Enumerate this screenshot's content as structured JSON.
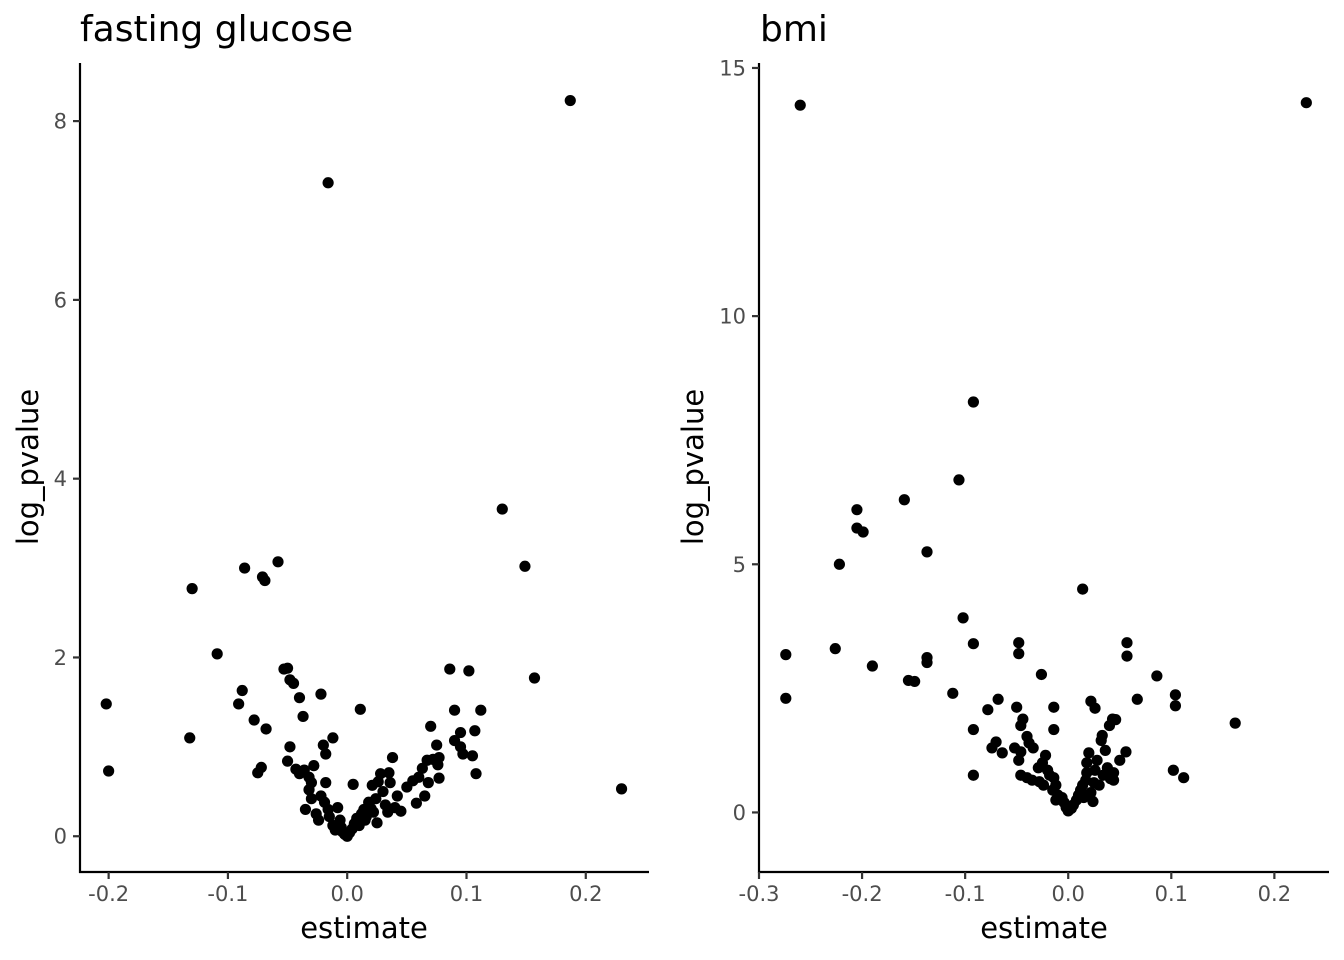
{
  "chart_data": [
    {
      "type": "scatter",
      "title": "fasting glucose",
      "xlabel": "estimate",
      "ylabel": "log_pvalue",
      "xlim": [
        -0.224,
        0.253
      ],
      "ylim": [
        -0.4,
        8.65
      ],
      "xticks": [
        -0.2,
        -0.1,
        0.0,
        0.1,
        0.2
      ],
      "xtick_labels": [
        "-0.2",
        "-0.1",
        "0.0",
        "0.1",
        "0.2"
      ],
      "yticks": [
        0,
        2,
        4,
        6,
        8
      ],
      "ytick_labels": [
        "0",
        "2",
        "4",
        "6",
        "8"
      ],
      "grid": false,
      "color": "#000000",
      "points": [
        [
          -0.202,
          1.48
        ],
        [
          -0.2,
          0.73
        ],
        [
          -0.13,
          2.77
        ],
        [
          -0.132,
          1.1
        ],
        [
          -0.109,
          2.04
        ],
        [
          -0.088,
          1.63
        ],
        [
          -0.086,
          3.0
        ],
        [
          -0.091,
          1.48
        ],
        [
          -0.078,
          1.3
        ],
        [
          -0.071,
          2.9
        ],
        [
          -0.069,
          2.86
        ],
        [
          -0.068,
          1.2
        ],
        [
          -0.072,
          0.77
        ],
        [
          -0.075,
          0.71
        ],
        [
          -0.058,
          3.07
        ],
        [
          -0.053,
          1.87
        ],
        [
          -0.05,
          1.88
        ],
        [
          -0.048,
          1.75
        ],
        [
          -0.045,
          1.71
        ],
        [
          -0.04,
          1.55
        ],
        [
          -0.037,
          1.34
        ],
        [
          -0.048,
          1.0
        ],
        [
          -0.05,
          0.84
        ],
        [
          -0.043,
          0.75
        ],
        [
          -0.04,
          0.7
        ],
        [
          -0.036,
          0.74
        ],
        [
          -0.032,
          0.66
        ],
        [
          -0.03,
          0.6
        ],
        [
          -0.028,
          0.79
        ],
        [
          -0.032,
          0.52
        ],
        [
          -0.035,
          0.3
        ],
        [
          -0.03,
          0.42
        ],
        [
          -0.026,
          0.25
        ],
        [
          -0.024,
          0.18
        ],
        [
          -0.022,
          1.59
        ],
        [
          -0.02,
          1.02
        ],
        [
          -0.018,
          0.92
        ],
        [
          -0.016,
          7.31
        ],
        [
          -0.012,
          1.1
        ],
        [
          -0.018,
          0.6
        ],
        [
          -0.022,
          0.45
        ],
        [
          -0.019,
          0.38
        ],
        [
          -0.016,
          0.3
        ],
        [
          -0.015,
          0.22
        ],
        [
          -0.012,
          0.12
        ],
        [
          -0.01,
          0.07
        ],
        [
          -0.008,
          0.32
        ],
        [
          -0.006,
          0.18
        ],
        [
          -0.005,
          0.1
        ],
        [
          -0.004,
          0.05
        ],
        [
          -0.002,
          0.02
        ],
        [
          0.0,
          0.0
        ],
        [
          0.002,
          0.04
        ],
        [
          0.004,
          0.08
        ],
        [
          0.006,
          0.14
        ],
        [
          0.005,
          0.58
        ],
        [
          0.008,
          0.2
        ],
        [
          0.01,
          0.12
        ],
        [
          0.011,
          1.42
        ],
        [
          0.012,
          0.25
        ],
        [
          0.014,
          0.3
        ],
        [
          0.015,
          0.18
        ],
        [
          0.016,
          0.22
        ],
        [
          0.018,
          0.38
        ],
        [
          0.02,
          0.31
        ],
        [
          0.021,
          0.57
        ],
        [
          0.022,
          0.27
        ],
        [
          0.024,
          0.42
        ],
        [
          0.025,
          0.15
        ],
        [
          0.026,
          0.61
        ],
        [
          0.028,
          0.7
        ],
        [
          0.03,
          0.5
        ],
        [
          0.032,
          0.35
        ],
        [
          0.034,
          0.27
        ],
        [
          0.035,
          0.71
        ],
        [
          0.036,
          0.6
        ],
        [
          0.038,
          0.88
        ],
        [
          0.04,
          0.32
        ],
        [
          0.042,
          0.45
        ],
        [
          0.045,
          0.28
        ],
        [
          0.05,
          0.55
        ],
        [
          0.055,
          0.62
        ],
        [
          0.058,
          0.37
        ],
        [
          0.06,
          0.66
        ],
        [
          0.063,
          0.76
        ],
        [
          0.065,
          0.45
        ],
        [
          0.067,
          0.85
        ],
        [
          0.068,
          0.6
        ],
        [
          0.07,
          1.23
        ],
        [
          0.072,
          0.86
        ],
        [
          0.075,
          1.02
        ],
        [
          0.076,
          0.8
        ],
        [
          0.077,
          0.65
        ],
        [
          0.077,
          0.88
        ],
        [
          0.086,
          1.87
        ],
        [
          0.09,
          1.41
        ],
        [
          0.09,
          1.07
        ],
        [
          0.095,
          1.16
        ],
        [
          0.095,
          1.0
        ],
        [
          0.097,
          0.92
        ],
        [
          0.102,
          1.85
        ],
        [
          0.105,
          0.9
        ],
        [
          0.107,
          1.18
        ],
        [
          0.108,
          0.7
        ],
        [
          0.112,
          1.41
        ],
        [
          0.13,
          3.66
        ],
        [
          0.149,
          3.02
        ],
        [
          0.157,
          1.77
        ],
        [
          0.187,
          8.23
        ],
        [
          0.23,
          0.53
        ]
      ]
    },
    {
      "type": "scatter",
      "title": "bmi",
      "xlabel": "estimate",
      "ylabel": "log_pvalue",
      "xlim": [
        -0.3,
        0.253
      ],
      "ylim": [
        -1.2,
        15.1
      ],
      "xticks": [
        -0.3,
        -0.2,
        -0.1,
        0.0,
        0.1,
        0.2
      ],
      "xtick_labels": [
        "-0.3",
        "-0.2",
        "-0.1",
        "0.0",
        "0.1",
        "0.2"
      ],
      "yticks": [
        0,
        5,
        10,
        15
      ],
      "ytick_labels": [
        "0",
        "5",
        "10",
        "15"
      ],
      "grid": false,
      "color": "#000000",
      "points": [
        [
          -0.26,
          14.25
        ],
        [
          0.231,
          14.3
        ],
        [
          -0.092,
          8.27
        ],
        [
          -0.106,
          6.7
        ],
        [
          -0.159,
          6.3
        ],
        [
          -0.205,
          6.1
        ],
        [
          -0.205,
          5.73
        ],
        [
          -0.199,
          5.65
        ],
        [
          -0.137,
          5.25
        ],
        [
          -0.222,
          5.0
        ],
        [
          0.014,
          4.5
        ],
        [
          -0.102,
          3.92
        ],
        [
          -0.092,
          3.4
        ],
        [
          -0.048,
          3.42
        ],
        [
          -0.048,
          3.2
        ],
        [
          0.057,
          3.42
        ],
        [
          0.057,
          3.15
        ],
        [
          -0.274,
          3.18
        ],
        [
          -0.226,
          3.3
        ],
        [
          -0.19,
          2.95
        ],
        [
          -0.137,
          3.12
        ],
        [
          -0.137,
          3.02
        ],
        [
          -0.155,
          2.66
        ],
        [
          -0.149,
          2.64
        ],
        [
          -0.112,
          2.4
        ],
        [
          -0.026,
          2.78
        ],
        [
          0.086,
          2.75
        ],
        [
          -0.274,
          2.3
        ],
        [
          -0.068,
          2.28
        ],
        [
          -0.078,
          2.07
        ],
        [
          -0.05,
          2.12
        ],
        [
          -0.014,
          2.12
        ],
        [
          0.022,
          2.24
        ],
        [
          0.026,
          2.1
        ],
        [
          0.067,
          2.28
        ],
        [
          0.104,
          2.37
        ],
        [
          0.104,
          2.15
        ],
        [
          0.162,
          1.8
        ],
        [
          -0.092,
          1.67
        ],
        [
          -0.044,
          1.88
        ],
        [
          -0.046,
          1.75
        ],
        [
          -0.014,
          1.67
        ],
        [
          0.04,
          1.75
        ],
        [
          0.043,
          1.88
        ],
        [
          0.046,
          1.87
        ],
        [
          -0.07,
          1.42
        ],
        [
          -0.04,
          1.53
        ],
        [
          -0.038,
          1.4
        ],
        [
          -0.034,
          1.3
        ],
        [
          -0.052,
          1.3
        ],
        [
          -0.046,
          1.22
        ],
        [
          -0.048,
          1.05
        ],
        [
          -0.074,
          1.3
        ],
        [
          -0.064,
          1.2
        ],
        [
          -0.022,
          1.15
        ],
        [
          -0.025,
          1.0
        ],
        [
          -0.029,
          0.9
        ],
        [
          -0.02,
          0.85
        ],
        [
          -0.018,
          0.75
        ],
        [
          -0.092,
          0.75
        ],
        [
          -0.046,
          0.75
        ],
        [
          -0.04,
          0.7
        ],
        [
          -0.035,
          0.65
        ],
        [
          -0.028,
          0.62
        ],
        [
          -0.024,
          0.55
        ],
        [
          -0.014,
          0.7
        ],
        [
          -0.012,
          0.55
        ],
        [
          -0.015,
          0.45
        ],
        [
          -0.01,
          0.35
        ],
        [
          -0.012,
          0.25
        ],
        [
          -0.006,
          0.3
        ],
        [
          -0.004,
          0.2
        ],
        [
          -0.002,
          0.1
        ],
        [
          0.0,
          0.03
        ],
        [
          0.003,
          0.08
        ],
        [
          0.005,
          0.15
        ],
        [
          0.008,
          0.25
        ],
        [
          0.01,
          0.35
        ],
        [
          0.012,
          0.45
        ],
        [
          0.014,
          0.55
        ],
        [
          0.015,
          0.3
        ],
        [
          0.017,
          0.65
        ],
        [
          0.018,
          0.8
        ],
        [
          0.018,
          1.0
        ],
        [
          0.02,
          1.2
        ],
        [
          0.022,
          0.4
        ],
        [
          0.024,
          0.22
        ],
        [
          0.025,
          0.6
        ],
        [
          0.026,
          0.85
        ],
        [
          0.028,
          1.05
        ],
        [
          0.03,
          0.55
        ],
        [
          0.032,
          1.45
        ],
        [
          0.033,
          1.55
        ],
        [
          0.034,
          0.75
        ],
        [
          0.036,
          1.25
        ],
        [
          0.038,
          0.9
        ],
        [
          0.041,
          0.68
        ],
        [
          0.044,
          0.8
        ],
        [
          0.044,
          0.65
        ],
        [
          0.05,
          1.05
        ],
        [
          0.056,
          1.22
        ],
        [
          0.102,
          0.85
        ],
        [
          0.112,
          0.7
        ]
      ]
    }
  ]
}
